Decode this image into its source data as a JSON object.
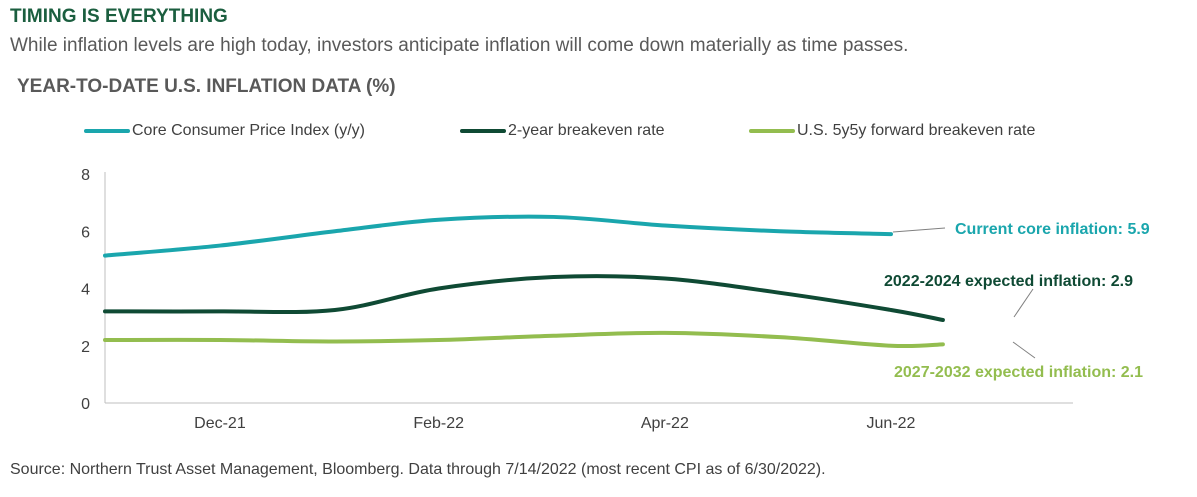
{
  "header": {
    "title": "TIMING IS EVERYTHING",
    "subtitle": "While inflation levels are high today, investors anticipate inflation will come down materially as time passes."
  },
  "colors": {
    "heading": "#1b5e3f",
    "cpi": "#1aa6ad",
    "breakeven_2y": "#0f4a34",
    "forward_5y5y": "#93bd4f",
    "axis": "#bfbfbf",
    "leader": "#808080"
  },
  "footer": {
    "source": "Source: Northern Trust Asset Management, Bloomberg. Data through 7/14/2022 (most recent CPI as of 6/30/2022)."
  },
  "chart_data": {
    "type": "line",
    "title": "YEAR-TO-DATE U.S. INFLATION DATA (%)",
    "x": [
      "2021-12-31",
      "2022-01-31",
      "2022-02-28",
      "2022-03-31",
      "2022-04-30",
      "2022-05-31",
      "2022-06-30",
      "2022-07-14"
    ],
    "x_tick_labels": [
      "Dec-21",
      "Feb-22",
      "Apr-22",
      "Jun-22"
    ],
    "y_tick_labels": [
      "0",
      "2",
      "4",
      "6",
      "8"
    ],
    "ylim": [
      0,
      8
    ],
    "grid": false,
    "legend_position": "top",
    "series": [
      {
        "name": "Core Consumer Price Index (y/y)",
        "color_key": "cpi",
        "x": [
          "2021-12-31",
          "2022-01-31",
          "2022-02-28",
          "2022-03-31",
          "2022-04-30",
          "2022-05-31",
          "2022-06-30"
        ],
        "values": [
          5.5,
          6.0,
          6.4,
          6.5,
          6.2,
          6.0,
          5.9
        ]
      },
      {
        "name": "2-year breakeven rate",
        "color_key": "breakeven_2y",
        "x": [
          "2021-12-31",
          "2022-01-31",
          "2022-02-28",
          "2022-03-31",
          "2022-04-30",
          "2022-05-31",
          "2022-06-30",
          "2022-07-14"
        ],
        "values": [
          3.2,
          3.25,
          4.0,
          4.4,
          4.35,
          3.85,
          3.25,
          2.9
        ]
      },
      {
        "name": "U.S. 5y5y forward breakeven rate",
        "color_key": "forward_5y5y",
        "x": [
          "2021-12-31",
          "2022-01-31",
          "2022-02-28",
          "2022-03-31",
          "2022-04-30",
          "2022-05-31",
          "2022-06-30",
          "2022-07-14"
        ],
        "values": [
          2.2,
          2.15,
          2.2,
          2.35,
          2.45,
          2.3,
          2.0,
          2.05
        ]
      }
    ],
    "series_lead_in": [
      {
        "series": 0,
        "x": "2021-11-30",
        "value": 5.15
      },
      {
        "series": 1,
        "x": "2021-11-30",
        "value": 3.2
      },
      {
        "series": 2,
        "x": "2021-11-30",
        "value": 2.2
      }
    ],
    "annotations": [
      {
        "text": "Current core inflation: 5.9",
        "series": 0,
        "color_key": "cpi"
      },
      {
        "text": "2022-2024 expected inflation: 2.9",
        "series": 1,
        "color_key": "breakeven_2y"
      },
      {
        "text": "2027-2032 expected inflation: 2.1",
        "series": 2,
        "color_key": "forward_5y5y"
      }
    ]
  }
}
